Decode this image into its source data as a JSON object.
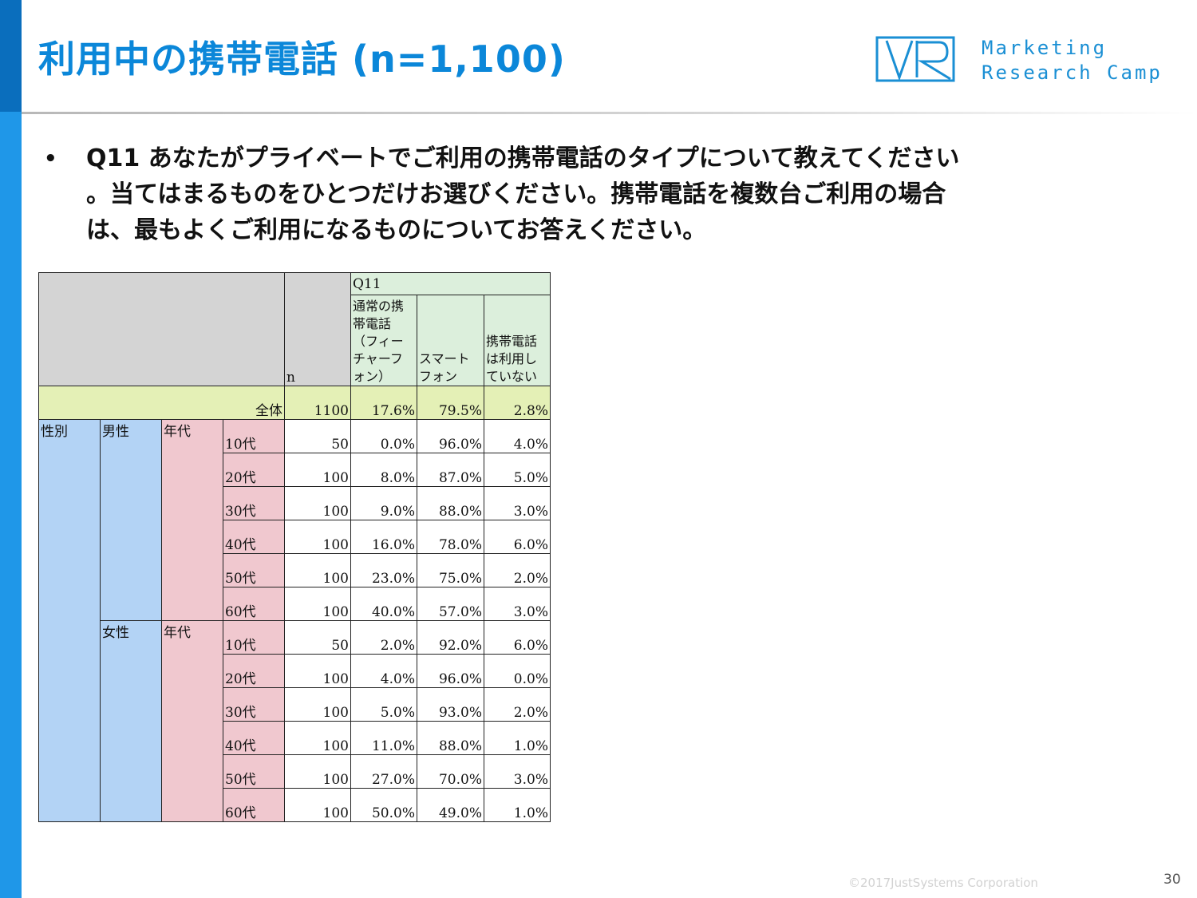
{
  "slide": {
    "title": "利用中の携帯電話 (n=1,100)",
    "brand": {
      "line1": "Marketing",
      "line2": "Research Camp"
    },
    "bullet": "•",
    "question": "Q11 あなたがプライベートでご利用の携帯電話のタイプについて教えてください\n。当てはまるものをひとつだけお選びください。携帯電話を複数台ご利用の場合\nは、最もよくご利用になるものについてお答えください。",
    "copyright": "©2017JustSystems Corporation",
    "page_number": "30"
  },
  "colors": {
    "title": "#0b87d9",
    "sidebar": "#1f97e8",
    "header_green": "#dcefdc",
    "total_row": "#e4f0b6",
    "gender": "#b3d3f5",
    "age": "#f0c8cf"
  },
  "table": {
    "q_label": "Q11",
    "n_label": "n",
    "columns": [
      "通常の携帯電話（フィーチャーフォン）",
      "スマートフォン",
      "携帯電話は利用していない"
    ],
    "total": {
      "label": "全体",
      "n": "1100",
      "values": [
        "17.6%",
        "79.5%",
        "2.8%"
      ]
    },
    "gender_label": "性別",
    "age_group_label": "年代",
    "male": {
      "label": "男性",
      "rows": [
        {
          "age": "10代",
          "n": "50",
          "values": [
            "0.0%",
            "96.0%",
            "4.0%"
          ]
        },
        {
          "age": "20代",
          "n": "100",
          "values": [
            "8.0%",
            "87.0%",
            "5.0%"
          ]
        },
        {
          "age": "30代",
          "n": "100",
          "values": [
            "9.0%",
            "88.0%",
            "3.0%"
          ]
        },
        {
          "age": "40代",
          "n": "100",
          "values": [
            "16.0%",
            "78.0%",
            "6.0%"
          ]
        },
        {
          "age": "50代",
          "n": "100",
          "values": [
            "23.0%",
            "75.0%",
            "2.0%"
          ]
        },
        {
          "age": "60代",
          "n": "100",
          "values": [
            "40.0%",
            "57.0%",
            "3.0%"
          ]
        }
      ]
    },
    "female": {
      "label": "女性",
      "rows": [
        {
          "age": "10代",
          "n": "50",
          "values": [
            "2.0%",
            "92.0%",
            "6.0%"
          ]
        },
        {
          "age": "20代",
          "n": "100",
          "values": [
            "4.0%",
            "96.0%",
            "0.0%"
          ]
        },
        {
          "age": "30代",
          "n": "100",
          "values": [
            "5.0%",
            "93.0%",
            "2.0%"
          ]
        },
        {
          "age": "40代",
          "n": "100",
          "values": [
            "11.0%",
            "88.0%",
            "1.0%"
          ]
        },
        {
          "age": "50代",
          "n": "100",
          "values": [
            "27.0%",
            "70.0%",
            "3.0%"
          ]
        },
        {
          "age": "60代",
          "n": "100",
          "values": [
            "50.0%",
            "49.0%",
            "1.0%"
          ]
        }
      ]
    }
  }
}
